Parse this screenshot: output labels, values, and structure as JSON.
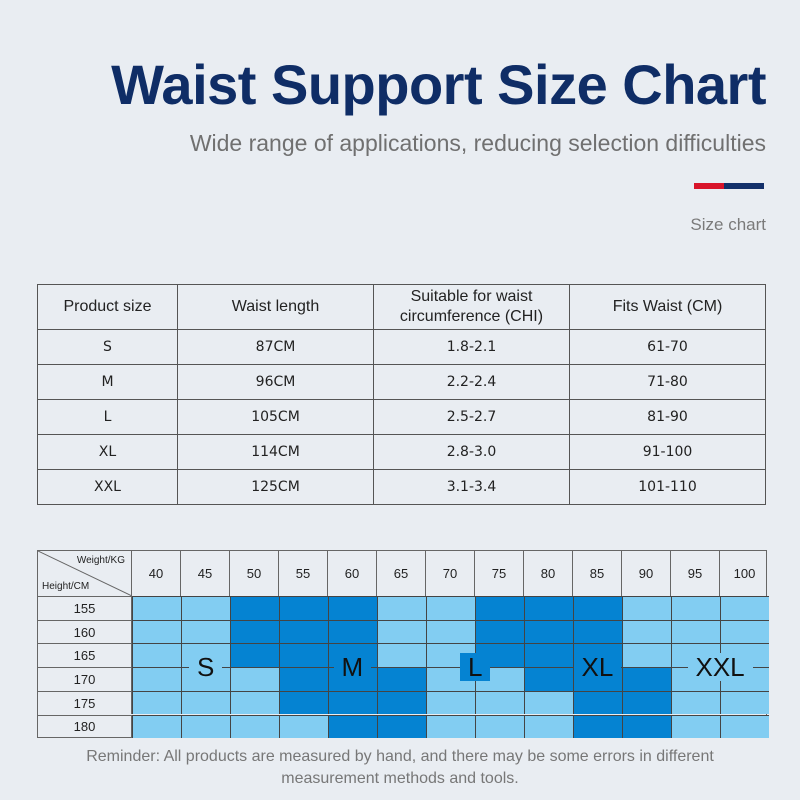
{
  "header": {
    "title": "Waist Support Size Chart",
    "subtitle": "Wide range of applications, reducing selection difficulties",
    "caption": "Size chart",
    "accent_colors": [
      "#d8142a",
      "#13306a"
    ]
  },
  "size_table": {
    "headers": [
      "Product size",
      "Waist length",
      "Suitable for waist circumference (CHI)",
      "Fits Waist (CM)"
    ],
    "rows": [
      [
        "S",
        "87CM",
        "1.8-2.1",
        "61-70"
      ],
      [
        "M",
        "96CM",
        "2.2-2.4",
        "71-80"
      ],
      [
        "L",
        "105CM",
        "2.5-2.7",
        "81-90"
      ],
      [
        "XL",
        "114CM",
        "2.8-3.0",
        "91-100"
      ],
      [
        "XXL",
        "125CM",
        "3.1-3.4",
        "101-110"
      ]
    ]
  },
  "weight_height_grid": {
    "weight_label": "Weight/KG",
    "height_label": "Height/CM",
    "weights": [
      "40",
      "45",
      "50",
      "55",
      "60",
      "65",
      "70",
      "75",
      "80",
      "85",
      "90",
      "95",
      "100"
    ],
    "heights": [
      "155",
      "160",
      "165",
      "170",
      "175",
      "180"
    ],
    "colors": {
      "light": "#82cdf2",
      "dark": "#0583d2"
    },
    "cell_shades": [
      "LLDDDLLDDDLLL",
      "LLDDDLLDDDLLL",
      "LLDDDLLDDDLLL",
      "LLLDDDLLDDDLL",
      "LLLDDDLLLDDLL",
      "LLLLDDLLLDDLL"
    ],
    "size_labels": [
      {
        "text": "S",
        "col": 1,
        "row": 2.5
      },
      {
        "text": "M",
        "col": 4,
        "row": 2.5
      },
      {
        "text": "L",
        "col": 6.5,
        "row": 2.5
      },
      {
        "text": "XL",
        "col": 9,
        "row": 2.5
      },
      {
        "text": "XXL",
        "col": 11.5,
        "row": 2.5
      }
    ]
  },
  "reminder": "Reminder: All products are measured by hand, and there may be some errors in different measurement methods and tools."
}
